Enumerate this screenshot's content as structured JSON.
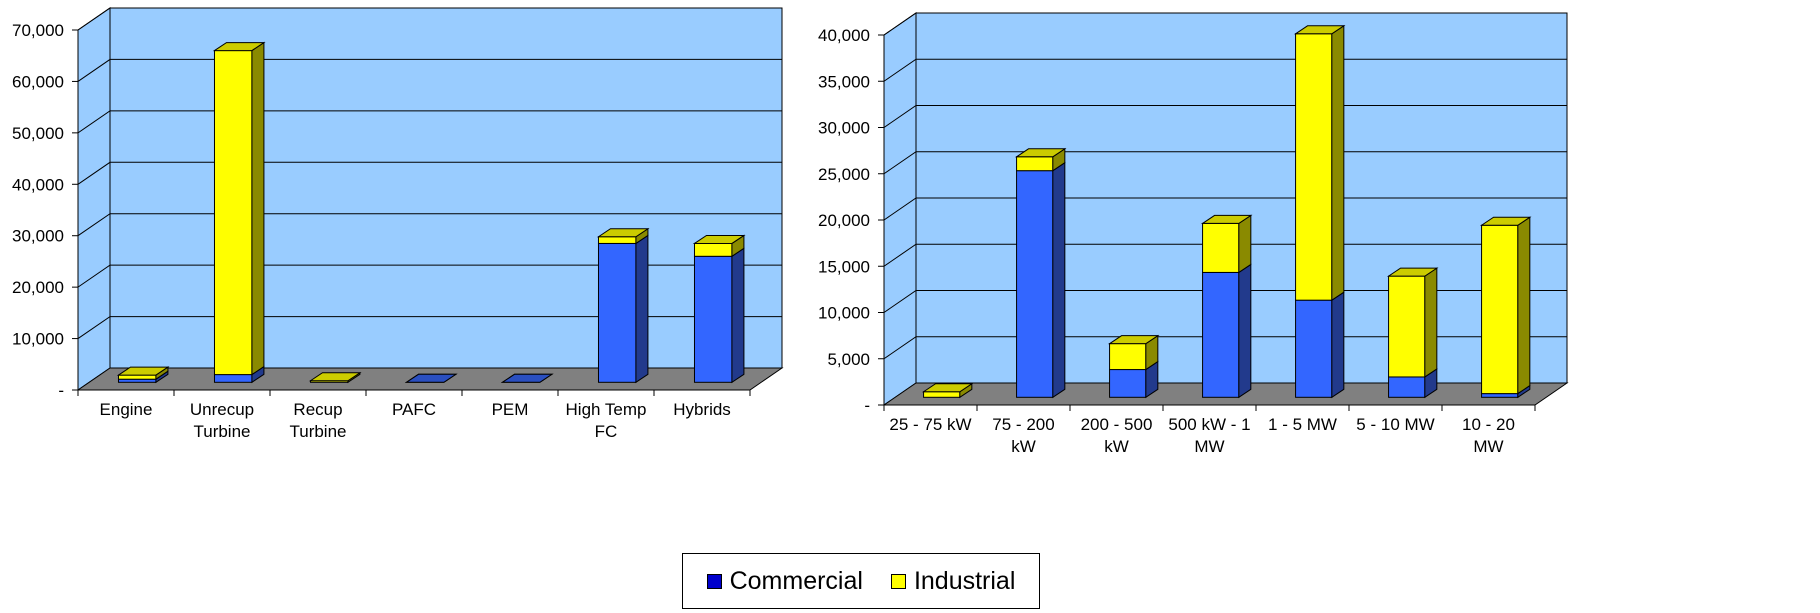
{
  "colors": {
    "commercial": "#3366ff",
    "industrial": "#ffff00",
    "plot_background": "#99ccff",
    "floor": "#808080"
  },
  "legend": {
    "items": [
      {
        "label": "Commercial",
        "color": "#0000cc"
      },
      {
        "label": "Industrial",
        "color": "#ffff00"
      }
    ]
  },
  "chart_data": [
    {
      "type": "bar",
      "stacked": true,
      "three_d": true,
      "categories": [
        [
          "Engine"
        ],
        [
          "Unrecup",
          "Turbine"
        ],
        [
          "Recup",
          "Turbine"
        ],
        [
          "PAFC"
        ],
        [
          "PEM"
        ],
        [
          "High Temp",
          "FC"
        ],
        [
          "Hybrids"
        ]
      ],
      "series": [
        {
          "name": "Commercial",
          "values": [
            600,
            1500,
            0,
            0,
            0,
            27000,
            24500
          ]
        },
        {
          "name": "Industrial",
          "values": [
            800,
            63000,
            300,
            0,
            0,
            1300,
            2500
          ]
        }
      ],
      "ylim": [
        0,
        70000
      ],
      "yticks": [
        0,
        10000,
        20000,
        30000,
        40000,
        50000,
        60000,
        70000
      ],
      "ytick_labels": [
        "-",
        "10,000",
        "20,000",
        "30,000",
        "40,000",
        "50,000",
        "60,000",
        "70,000"
      ],
      "grid": true,
      "legend": "bottom-center"
    },
    {
      "type": "bar",
      "stacked": true,
      "three_d": true,
      "categories": [
        [
          "25 - 75 kW"
        ],
        [
          "75 - 200",
          "kW"
        ],
        [
          "200 - 500",
          "kW"
        ],
        [
          "500 kW - 1",
          "MW"
        ],
        [
          "1 - 5 MW"
        ],
        [
          "5 - 10 MW"
        ],
        [
          "10 - 20",
          "MW"
        ]
      ],
      "series": [
        {
          "name": "Commercial",
          "values": [
            0,
            24500,
            3000,
            13500,
            10500,
            2200,
            400
          ]
        },
        {
          "name": "Industrial",
          "values": [
            600,
            1500,
            2800,
            5300,
            28800,
            10900,
            18200
          ]
        }
      ],
      "ylim": [
        0,
        40000
      ],
      "yticks": [
        0,
        5000,
        10000,
        15000,
        20000,
        25000,
        30000,
        35000,
        40000
      ],
      "ytick_labels": [
        "-",
        "5,000",
        "10,000",
        "15,000",
        "20,000",
        "25,000",
        "30,000",
        "35,000",
        "40,000"
      ],
      "grid": true,
      "legend": "bottom-center"
    }
  ]
}
